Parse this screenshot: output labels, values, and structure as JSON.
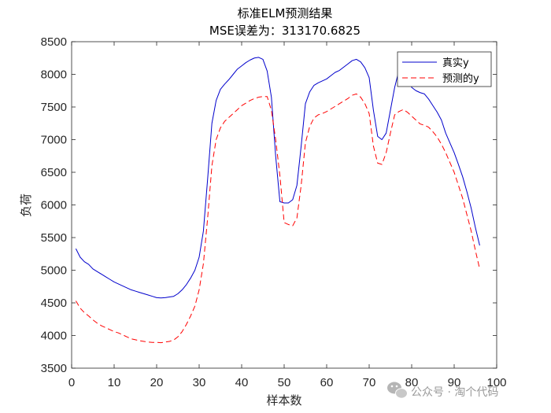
{
  "chart_data": {
    "type": "line",
    "title": "标准ELM预测结果",
    "subtitle": "MSE误差为：313170.6825",
    "xlabel": "样本数",
    "ylabel": "负荷",
    "xlim": [
      0,
      100
    ],
    "ylim": [
      3500,
      8500
    ],
    "xticks": [
      0,
      10,
      20,
      30,
      40,
      50,
      60,
      70,
      80,
      90,
      100
    ],
    "yticks": [
      3500,
      4000,
      4500,
      5000,
      5500,
      6000,
      6500,
      7000,
      7500,
      8000,
      8500
    ],
    "grid": false,
    "legend_position": "top-right",
    "series": [
      {
        "name": "真实y",
        "color": "#0000cc",
        "dash": "solid",
        "x": [
          1,
          2,
          3,
          4,
          5,
          6,
          7,
          8,
          9,
          10,
          11,
          12,
          13,
          14,
          15,
          16,
          17,
          18,
          19,
          20,
          21,
          22,
          23,
          24,
          25,
          26,
          27,
          28,
          29,
          30,
          31,
          32,
          33,
          34,
          35,
          36,
          37,
          38,
          39,
          40,
          41,
          42,
          43,
          44,
          45,
          46,
          47,
          48,
          49,
          50,
          51,
          52,
          53,
          54,
          55,
          56,
          57,
          58,
          59,
          60,
          61,
          62,
          63,
          64,
          65,
          66,
          67,
          68,
          69,
          70,
          71,
          72,
          73,
          74,
          75,
          76,
          77,
          78,
          79,
          80,
          81,
          82,
          83,
          84,
          85,
          86,
          87,
          88,
          89,
          90,
          91,
          92,
          93,
          94,
          95,
          96
        ],
        "values": [
          5330,
          5200,
          5130,
          5090,
          5020,
          4980,
          4940,
          4900,
          4860,
          4820,
          4790,
          4760,
          4730,
          4700,
          4680,
          4660,
          4640,
          4620,
          4600,
          4580,
          4575,
          4580,
          4590,
          4600,
          4640,
          4700,
          4780,
          4880,
          5000,
          5200,
          5600,
          6400,
          7250,
          7600,
          7770,
          7850,
          7920,
          8000,
          8080,
          8130,
          8180,
          8220,
          8250,
          8260,
          8230,
          8050,
          7650,
          6750,
          6050,
          6030,
          6030,
          6080,
          6300,
          6900,
          7550,
          7730,
          7830,
          7870,
          7900,
          7930,
          7980,
          8030,
          8060,
          8110,
          8160,
          8210,
          8230,
          8190,
          8100,
          7950,
          7450,
          7050,
          7000,
          7100,
          7450,
          7800,
          8060,
          8100,
          7950,
          7800,
          7750,
          7720,
          7700,
          7620,
          7520,
          7420,
          7300,
          7100,
          6950,
          6800,
          6620,
          6430,
          6200,
          5950,
          5650,
          5380
        ]
      },
      {
        "name": "预测的y",
        "color": "#ff0000",
        "dash": "dashed",
        "x": [
          1,
          2,
          3,
          4,
          5,
          6,
          7,
          8,
          9,
          10,
          11,
          12,
          13,
          14,
          15,
          16,
          17,
          18,
          19,
          20,
          21,
          22,
          23,
          24,
          25,
          26,
          27,
          28,
          29,
          30,
          31,
          32,
          33,
          34,
          35,
          36,
          37,
          38,
          39,
          40,
          41,
          42,
          43,
          44,
          45,
          46,
          47,
          48,
          49,
          50,
          51,
          52,
          53,
          54,
          55,
          56,
          57,
          58,
          59,
          60,
          61,
          62,
          63,
          64,
          65,
          66,
          67,
          68,
          69,
          70,
          71,
          72,
          73,
          74,
          75,
          76,
          77,
          78,
          79,
          80,
          81,
          82,
          83,
          84,
          85,
          86,
          87,
          88,
          89,
          90,
          91,
          92,
          93,
          94,
          95,
          96
        ],
        "values": [
          4530,
          4420,
          4350,
          4300,
          4240,
          4190,
          4150,
          4120,
          4090,
          4060,
          4040,
          4010,
          3980,
          3950,
          3935,
          3920,
          3910,
          3900,
          3895,
          3895,
          3890,
          3900,
          3910,
          3930,
          3980,
          4060,
          4170,
          4300,
          4450,
          4700,
          5100,
          5800,
          6600,
          7000,
          7180,
          7280,
          7340,
          7400,
          7460,
          7520,
          7560,
          7600,
          7630,
          7650,
          7660,
          7660,
          7450,
          7000,
          6450,
          5730,
          5700,
          5680,
          5800,
          6300,
          6950,
          7200,
          7330,
          7380,
          7400,
          7430,
          7470,
          7510,
          7550,
          7590,
          7630,
          7680,
          7700,
          7650,
          7550,
          7400,
          6900,
          6640,
          6620,
          6800,
          7100,
          7380,
          7430,
          7460,
          7420,
          7360,
          7300,
          7240,
          7220,
          7190,
          7120,
          7040,
          6930,
          6800,
          6650,
          6500,
          6300,
          6100,
          5850,
          5600,
          5300,
          5020
        ]
      }
    ]
  },
  "watermark": {
    "text": "公众号 · 淘个代码",
    "icon": "wechat-icon"
  }
}
